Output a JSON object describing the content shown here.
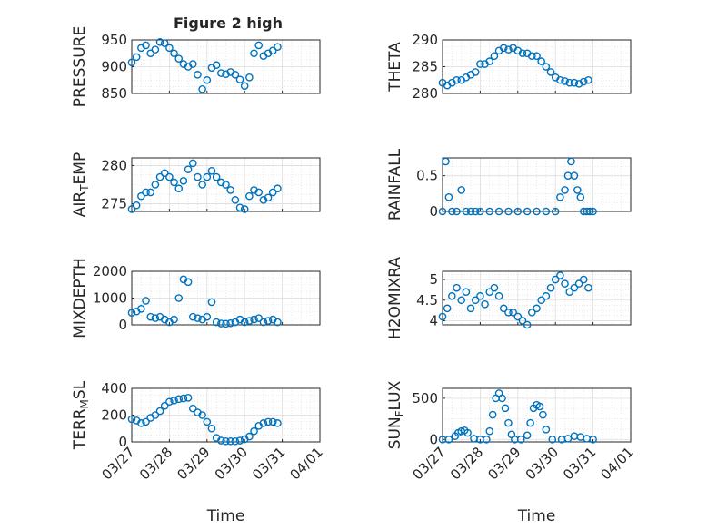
{
  "figure": {
    "title": "Figure 2 high"
  },
  "chart_data": [
    {
      "type": "scatter",
      "ylabel": "PRESSURE",
      "ylim": [
        850,
        950
      ],
      "yticks": [
        850,
        900,
        950
      ],
      "xlabel": "",
      "xlim": [
        "03/27",
        "04/01"
      ],
      "grid": "major+minor",
      "x": [
        "03/27 00:00",
        "03/27 03:00",
        "03/27 06:00",
        "03/27 09:00",
        "03/27 12:00",
        "03/27 15:00",
        "03/27 18:00",
        "03/27 21:00",
        "03/28 00:00",
        "03/28 03:00",
        "03/28 06:00",
        "03/28 09:00",
        "03/28 12:00",
        "03/28 15:00",
        "03/28 18:00",
        "03/28 21:00",
        "03/29 00:00",
        "03/29 03:00",
        "03/29 06:00",
        "03/29 09:00",
        "03/29 12:00",
        "03/29 15:00",
        "03/29 18:00",
        "03/29 21:00",
        "03/30 00:00",
        "03/30 03:00",
        "03/30 06:00",
        "03/30 09:00",
        "03/30 12:00",
        "03/30 15:00",
        "03/30 18:00",
        "03/30 21:00"
      ],
      "values": [
        908,
        918,
        935,
        940,
        925,
        932,
        946,
        944,
        935,
        925,
        915,
        905,
        900,
        905,
        885,
        858,
        875,
        898,
        903,
        888,
        886,
        890,
        885,
        876,
        864,
        880,
        925,
        940,
        920,
        925,
        930,
        937
      ]
    },
    {
      "type": "scatter",
      "ylabel": "THETA",
      "ylim": [
        280,
        290
      ],
      "yticks": [
        280,
        285,
        290
      ],
      "xlabel": "",
      "xlim": [
        "03/27",
        "04/01"
      ],
      "grid": "major+minor",
      "x": [
        "03/27 00:00",
        "03/27 03:00",
        "03/27 06:00",
        "03/27 09:00",
        "03/27 12:00",
        "03/27 15:00",
        "03/27 18:00",
        "03/27 21:00",
        "03/28 00:00",
        "03/28 03:00",
        "03/28 06:00",
        "03/28 09:00",
        "03/28 12:00",
        "03/28 15:00",
        "03/28 18:00",
        "03/28 21:00",
        "03/29 00:00",
        "03/29 03:00",
        "03/29 06:00",
        "03/29 09:00",
        "03/29 12:00",
        "03/29 15:00",
        "03/29 18:00",
        "03/29 21:00",
        "03/30 00:00",
        "03/30 03:00",
        "03/30 06:00",
        "03/30 09:00",
        "03/30 12:00",
        "03/30 15:00",
        "03/30 18:00",
        "03/30 21:00"
      ],
      "values": [
        282,
        281.5,
        282,
        282.5,
        282.5,
        283,
        283.5,
        284,
        285.5,
        285.5,
        286,
        287,
        288,
        288.5,
        288.2,
        288.5,
        288,
        287.5,
        287.5,
        287,
        287,
        286,
        285,
        284,
        283,
        282.5,
        282.3,
        282,
        282,
        281.8,
        282.2,
        282.5
      ]
    },
    {
      "type": "scatter",
      "ylabel": "AIR_TEMP",
      "ylim": [
        274,
        281
      ],
      "yticks": [
        275,
        280
      ],
      "xlabel": "",
      "xlim": [
        "03/27",
        "04/01"
      ],
      "grid": "major+minor",
      "x": [
        "03/27 00:00",
        "03/27 03:00",
        "03/27 06:00",
        "03/27 09:00",
        "03/27 12:00",
        "03/27 15:00",
        "03/27 18:00",
        "03/27 21:00",
        "03/28 00:00",
        "03/28 03:00",
        "03/28 06:00",
        "03/28 09:00",
        "03/28 12:00",
        "03/28 15:00",
        "03/28 18:00",
        "03/28 21:00",
        "03/29 00:00",
        "03/29 03:00",
        "03/29 06:00",
        "03/29 09:00",
        "03/29 12:00",
        "03/29 15:00",
        "03/29 18:00",
        "03/29 21:00",
        "03/30 00:00",
        "03/30 03:00",
        "03/30 06:00",
        "03/30 09:00",
        "03/30 12:00",
        "03/30 15:00",
        "03/30 18:00",
        "03/30 21:00"
      ],
      "values": [
        274.3,
        274.8,
        276,
        276.5,
        276.5,
        277.5,
        278.5,
        279,
        278.5,
        277.8,
        277,
        278,
        279.5,
        280.3,
        278.5,
        277.5,
        278.5,
        279.3,
        278.5,
        277.8,
        277.5,
        276.8,
        275.5,
        274.5,
        274.3,
        276,
        276.8,
        276.5,
        275.5,
        275.8,
        276.5,
        277
      ]
    },
    {
      "type": "scatter",
      "ylabel": "RAINFALL",
      "ylim": [
        0,
        0.75
      ],
      "yticks": [
        0,
        0.5
      ],
      "xlabel": "",
      "xlim": [
        "03/27",
        "04/01"
      ],
      "grid": "major+minor",
      "x": [
        "03/27 00:00",
        "03/27 02:00",
        "03/27 04:00",
        "03/27 06:00",
        "03/27 09:00",
        "03/27 12:00",
        "03/27 15:00",
        "03/27 18:00",
        "03/27 21:00",
        "03/28 00:00",
        "03/28 06:00",
        "03/28 12:00",
        "03/28 18:00",
        "03/29 00:00",
        "03/29 06:00",
        "03/29 12:00",
        "03/29 18:00",
        "03/30 00:00",
        "03/30 03:00",
        "03/30 06:00",
        "03/30 08:00",
        "03/30 10:00",
        "03/30 12:00",
        "03/30 14:00",
        "03/30 16:00",
        "03/30 18:00",
        "03/30 20:00",
        "03/30 22:00",
        "03/31 00:00"
      ],
      "values": [
        0,
        0.7,
        0.2,
        0,
        0,
        0.3,
        0,
        0,
        0,
        0,
        0,
        0,
        0,
        0,
        0,
        0,
        0,
        0,
        0.2,
        0.3,
        0.5,
        0.7,
        0.5,
        0.3,
        0.2,
        0,
        0,
        0,
        0
      ]
    },
    {
      "type": "scatter",
      "ylabel": "MIXDEPTH",
      "ylim": [
        0,
        2000
      ],
      "yticks": [
        0,
        1000,
        2000
      ],
      "xlabel": "",
      "xlim": [
        "03/27",
        "04/01"
      ],
      "grid": "major+minor",
      "x": [
        "03/27 00:00",
        "03/27 03:00",
        "03/27 06:00",
        "03/27 09:00",
        "03/27 12:00",
        "03/27 15:00",
        "03/27 18:00",
        "03/27 21:00",
        "03/28 00:00",
        "03/28 03:00",
        "03/28 06:00",
        "03/28 09:00",
        "03/28 12:00",
        "03/28 15:00",
        "03/28 18:00",
        "03/28 21:00",
        "03/29 00:00",
        "03/29 03:00",
        "03/29 06:00",
        "03/29 09:00",
        "03/29 12:00",
        "03/29 15:00",
        "03/29 18:00",
        "03/29 21:00",
        "03/30 00:00",
        "03/30 03:00",
        "03/30 06:00",
        "03/30 09:00",
        "03/30 12:00",
        "03/30 15:00",
        "03/30 18:00",
        "03/30 21:00"
      ],
      "values": [
        450,
        500,
        600,
        900,
        300,
        250,
        300,
        200,
        100,
        200,
        1000,
        1700,
        1600,
        300,
        250,
        200,
        300,
        850,
        100,
        50,
        40,
        60,
        100,
        200,
        100,
        150,
        200,
        250,
        100,
        150,
        200,
        100
      ]
    },
    {
      "type": "scatter",
      "ylabel": "H2OMIXRA",
      "ylim": [
        3.9,
        5.2
      ],
      "yticks": [
        4,
        4.5,
        5
      ],
      "xlabel": "",
      "xlim": [
        "03/27",
        "04/01"
      ],
      "grid": "major+minor",
      "x": [
        "03/27 00:00",
        "03/27 03:00",
        "03/27 06:00",
        "03/27 09:00",
        "03/27 12:00",
        "03/27 15:00",
        "03/27 18:00",
        "03/27 21:00",
        "03/28 00:00",
        "03/28 03:00",
        "03/28 06:00",
        "03/28 09:00",
        "03/28 12:00",
        "03/28 15:00",
        "03/28 18:00",
        "03/28 21:00",
        "03/29 00:00",
        "03/29 03:00",
        "03/29 06:00",
        "03/29 09:00",
        "03/29 12:00",
        "03/29 15:00",
        "03/29 18:00",
        "03/29 21:00",
        "03/30 00:00",
        "03/30 03:00",
        "03/30 06:00",
        "03/30 09:00",
        "03/30 12:00",
        "03/30 15:00",
        "03/30 18:00",
        "03/30 21:00"
      ],
      "values": [
        4.1,
        4.3,
        4.6,
        4.8,
        4.5,
        4.7,
        4.3,
        4.5,
        4.6,
        4.4,
        4.7,
        4.8,
        4.6,
        4.3,
        4.2,
        4.2,
        4.1,
        4.0,
        3.9,
        4.2,
        4.3,
        4.5,
        4.6,
        4.8,
        5.0,
        5.1,
        4.9,
        4.7,
        4.8,
        4.9,
        5.0,
        4.8
      ]
    },
    {
      "type": "scatter",
      "ylabel": "TERR_MSL",
      "ylim": [
        0,
        400
      ],
      "yticks": [
        0,
        200,
        400
      ],
      "xlabel": "Time",
      "xlim": [
        "03/27",
        "04/01"
      ],
      "xticks": [
        "03/27",
        "03/28",
        "03/29",
        "03/30",
        "03/31",
        "04/01"
      ],
      "grid": "major+minor",
      "x": [
        "03/27 00:00",
        "03/27 03:00",
        "03/27 06:00",
        "03/27 09:00",
        "03/27 12:00",
        "03/27 15:00",
        "03/27 18:00",
        "03/27 21:00",
        "03/28 00:00",
        "03/28 03:00",
        "03/28 06:00",
        "03/28 09:00",
        "03/28 12:00",
        "03/28 15:00",
        "03/28 18:00",
        "03/28 21:00",
        "03/29 00:00",
        "03/29 03:00",
        "03/29 06:00",
        "03/29 09:00",
        "03/29 12:00",
        "03/29 15:00",
        "03/29 18:00",
        "03/29 21:00",
        "03/30 00:00",
        "03/30 03:00",
        "03/30 06:00",
        "03/30 09:00",
        "03/30 12:00",
        "03/30 15:00",
        "03/30 18:00",
        "03/30 21:00"
      ],
      "values": [
        170,
        160,
        140,
        150,
        180,
        200,
        230,
        270,
        300,
        310,
        320,
        325,
        330,
        250,
        220,
        200,
        150,
        100,
        30,
        10,
        5,
        5,
        5,
        10,
        20,
        40,
        80,
        120,
        140,
        150,
        150,
        140
      ]
    },
    {
      "type": "scatter",
      "ylabel": "SUN_FLUX",
      "ylim": [
        -30,
        620
      ],
      "yticks": [
        0,
        500
      ],
      "xlabel": "Time",
      "xlim": [
        "03/27",
        "04/01"
      ],
      "xticks": [
        "03/27",
        "03/28",
        "03/29",
        "03/30",
        "03/31",
        "04/01"
      ],
      "grid": "major+minor",
      "x": [
        "03/27 00:00",
        "03/27 04:00",
        "03/27 08:00",
        "03/27 10:00",
        "03/27 12:00",
        "03/27 14:00",
        "03/27 16:00",
        "03/27 20:00",
        "03/28 00:00",
        "03/28 04:00",
        "03/28 06:00",
        "03/28 08:00",
        "03/28 10:00",
        "03/28 12:00",
        "03/28 14:00",
        "03/28 16:00",
        "03/28 18:00",
        "03/28 20:00",
        "03/28 22:00",
        "03/29 02:00",
        "03/29 06:00",
        "03/29 08:00",
        "03/29 10:00",
        "03/29 12:00",
        "03/29 14:00",
        "03/29 16:00",
        "03/29 18:00",
        "03/29 22:00",
        "03/30 04:00",
        "03/30 08:00",
        "03/30 12:00",
        "03/30 16:00",
        "03/30 20:00",
        "03/31 00:00"
      ],
      "values": [
        0,
        0,
        40,
        80,
        100,
        110,
        80,
        10,
        0,
        0,
        100,
        300,
        500,
        560,
        500,
        380,
        200,
        60,
        0,
        0,
        50,
        200,
        380,
        420,
        400,
        300,
        120,
        0,
        0,
        10,
        40,
        30,
        10,
        0
      ]
    }
  ]
}
